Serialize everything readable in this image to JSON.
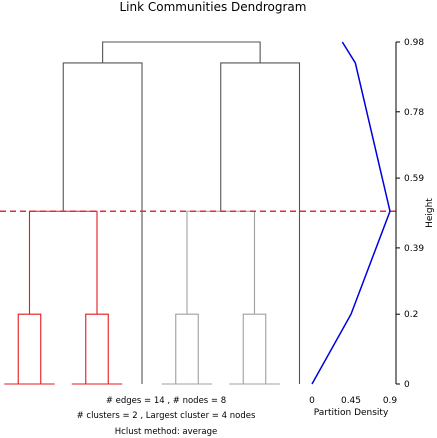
{
  "colors": {
    "cluster": "#e41a1c",
    "other": "#a0a0a0",
    "trunk": "#555555",
    "cut_line": "#e8293a",
    "density_line": "#0000dd"
  },
  "chart_data": [
    {
      "type": "dendrogram",
      "title": "Link Communities Dendrogram",
      "ylabel": "Height",
      "ylim": [
        0,
        0.98
      ],
      "y_ticks": [
        "0",
        "0.2",
        "0.39",
        "0.59",
        "0.78",
        "0.98"
      ],
      "y_tick_values": [
        0,
        0.2,
        0.39,
        0.59,
        0.78,
        0.98
      ],
      "cut_height": 0.495,
      "leaves": 14,
      "merges": [
        {
          "x": [
            0.5,
            1.5
          ],
          "y": 0.2,
          "group": "cluster"
        },
        {
          "x": [
            3.5,
            4.5
          ],
          "y": 0.2,
          "group": "cluster"
        },
        {
          "x": [
            1.0,
            4.0
          ],
          "y": 0.495,
          "group": "cluster"
        },
        {
          "x": [
            7.5,
            8.5
          ],
          "y": 0.2,
          "group": "other"
        },
        {
          "x": [
            10.5,
            11.5
          ],
          "y": 0.2,
          "group": "other"
        },
        {
          "x": [
            8.0,
            11.0
          ],
          "y": 0.495,
          "group": "other"
        },
        {
          "x": [
            2.5,
            6.0
          ],
          "y": 0.92,
          "group": "trunk"
        },
        {
          "x": [
            9.5,
            13.0
          ],
          "y": 0.92,
          "group": "trunk"
        },
        {
          "x": [
            4.25,
            11.25
          ],
          "y": 0.98,
          "group": "trunk"
        }
      ],
      "single_leaves": [
        {
          "x": 6.0,
          "y": 0.92,
          "group": "trunk"
        },
        {
          "x": 13.0,
          "y": 0.92,
          "group": "trunk"
        }
      ],
      "leaf_stubs": [
        {
          "x": 0.5,
          "group": "cluster"
        },
        {
          "x": 1.5,
          "group": "cluster"
        },
        {
          "x": 3.5,
          "group": "cluster"
        },
        {
          "x": 4.5,
          "group": "cluster"
        },
        {
          "x": 7.5,
          "group": "other"
        },
        {
          "x": 8.5,
          "group": "other"
        },
        {
          "x": 10.5,
          "group": "other"
        },
        {
          "x": 11.5,
          "group": "other"
        }
      ]
    },
    {
      "type": "line",
      "xlabel": "Partition Density",
      "xlim": [
        0,
        0.9
      ],
      "x_ticks": [
        "0",
        "0.45",
        "0.9"
      ],
      "x_tick_values": [
        0,
        0.45,
        0.9
      ],
      "series": [
        {
          "x": [
            0,
            0.45,
            0.9,
            0.5,
            0.35
          ],
          "y": [
            0,
            0.2,
            0.495,
            0.92,
            0.98
          ]
        }
      ]
    }
  ],
  "info": {
    "line1": "# edges =  14 ,     # nodes =  8",
    "line2": "# clusters =  2 ,   Largest cluster =  4  nodes",
    "line3": "Hclust method:  average"
  }
}
